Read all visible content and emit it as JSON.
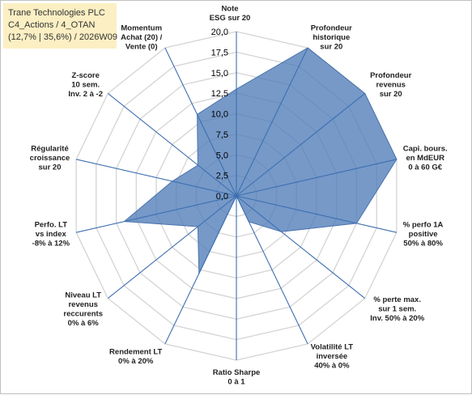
{
  "header": {
    "line1": "Trane Technologies PLC",
    "line2": "C4_Actions / 4_OTAN",
    "line3": "(12,7% | 35,6%) / 2026W09"
  },
  "chart_data": {
    "type": "radar",
    "rlim": [
      0,
      20
    ],
    "ticks": [
      "0,0",
      "2,5",
      "5,0",
      "7,5",
      "10,0",
      "12,5",
      "15,0",
      "17,5",
      "20,0"
    ],
    "axes": [
      {
        "label": "Note\nESG sur 20",
        "value": 13
      },
      {
        "label": "Profondeur\nhistorique\nsur 20",
        "value": 20
      },
      {
        "label": "Profondeur\nrevenus\nsur 20",
        "value": 20
      },
      {
        "label": "Capi. bours.\nen MdEUR\n0 à 60 G€",
        "value": 20
      },
      {
        "label": "% perfo 1A\npositive\n50% à 80%",
        "value": 15
      },
      {
        "label": "% perte max.\nsur 1 sem.\nInv. 50% à 20%",
        "value": 7
      },
      {
        "label": "Volatilité LT\ninversée\n40% à 0%",
        "value": 3.5
      },
      {
        "label": "Ratio Sharpe\n0 à 1",
        "value": 0
      },
      {
        "label": "Rendement LT\n0% à 20%",
        "value": 10.5
      },
      {
        "label": "Niveau LT\nrevenus\nreccurents\n0% à 6%",
        "value": 6
      },
      {
        "label": "Perfo. LT\nvs index\n-8% à 12%",
        "value": 14
      },
      {
        "label": "Régularité\ncroissance\nsur 20",
        "value": 8
      },
      {
        "label": "Z-score\n10 sem.\nInv. 2 à -2",
        "value": 6
      },
      {
        "label": "Momentum\nAchat (20) /\nVente (0)",
        "value": 11
      }
    ],
    "series": [
      {
        "name": "",
        "color": "#4f7cb8",
        "fill_opacity": 0.78
      }
    ],
    "grid": true
  }
}
